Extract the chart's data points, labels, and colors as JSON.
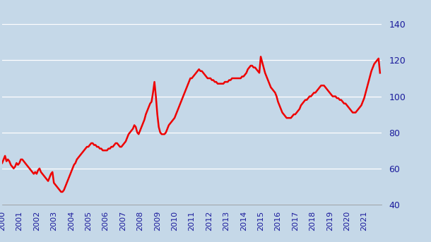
{
  "header_color": "#1e3f6e",
  "plot_bg_color": "#c5d8e8",
  "fig_bg_color": "#c5d8e8",
  "line_color": "#ee0000",
  "tick_color": "#1a1a9c",
  "grid_color": "#ffffff",
  "ylim": [
    40,
    140
  ],
  "yticks": [
    40,
    60,
    80,
    100,
    120,
    140
  ],
  "xlim": [
    2000,
    2022
  ],
  "years": [
    2000,
    2001,
    2002,
    2003,
    2004,
    2005,
    2006,
    2007,
    2008,
    2009,
    2010,
    2011,
    2012,
    2013,
    2014,
    2015,
    2016,
    2017,
    2018,
    2019,
    2020,
    2021
  ],
  "monthly_values": [
    63,
    65,
    67,
    64,
    65,
    64,
    62,
    61,
    60,
    61,
    63,
    62,
    63,
    65,
    65,
    64,
    63,
    62,
    61,
    60,
    59,
    58,
    57,
    58,
    57,
    59,
    60,
    58,
    57,
    56,
    55,
    54,
    53,
    55,
    57,
    58,
    52,
    51,
    50,
    49,
    48,
    47,
    47,
    48,
    50,
    52,
    54,
    56,
    58,
    60,
    62,
    63,
    65,
    66,
    67,
    68,
    69,
    70,
    71,
    72,
    72,
    73,
    74,
    74,
    73,
    73,
    72,
    72,
    71,
    71,
    70,
    70,
    70,
    70,
    71,
    71,
    72,
    72,
    73,
    74,
    74,
    73,
    72,
    72,
    73,
    74,
    75,
    77,
    79,
    80,
    81,
    82,
    84,
    83,
    80,
    79,
    81,
    83,
    85,
    87,
    90,
    92,
    94,
    96,
    97,
    102,
    108,
    100,
    90,
    83,
    80,
    79,
    79,
    79,
    80,
    82,
    84,
    85,
    86,
    87,
    88,
    90,
    92,
    94,
    96,
    98,
    100,
    102,
    104,
    106,
    108,
    110,
    110,
    111,
    112,
    113,
    114,
    115,
    114,
    114,
    113,
    112,
    111,
    110,
    110,
    110,
    109,
    109,
    108,
    108,
    107,
    107,
    107,
    107,
    107,
    108,
    108,
    108,
    109,
    109,
    110,
    110,
    110,
    110,
    110,
    110,
    110,
    111,
    111,
    112,
    113,
    115,
    116,
    117,
    117,
    116,
    116,
    115,
    114,
    113,
    122,
    119,
    116,
    113,
    111,
    109,
    107,
    105,
    104,
    103,
    102,
    100,
    97,
    95,
    93,
    91,
    90,
    89,
    88,
    88,
    88,
    88,
    89,
    90,
    90,
    91,
    92,
    93,
    95,
    96,
    97,
    98,
    98,
    99,
    100,
    100,
    101,
    102,
    102,
    103,
    104,
    105,
    106,
    106,
    106,
    105,
    104,
    103,
    102,
    101,
    100,
    100,
    100,
    99,
    99,
    98,
    98,
    97,
    96,
    96,
    95,
    94,
    93,
    92,
    91,
    91,
    91,
    92,
    93,
    94,
    95,
    97,
    99,
    102,
    105,
    108,
    111,
    114,
    116,
    118,
    119,
    120,
    121,
    113
  ]
}
